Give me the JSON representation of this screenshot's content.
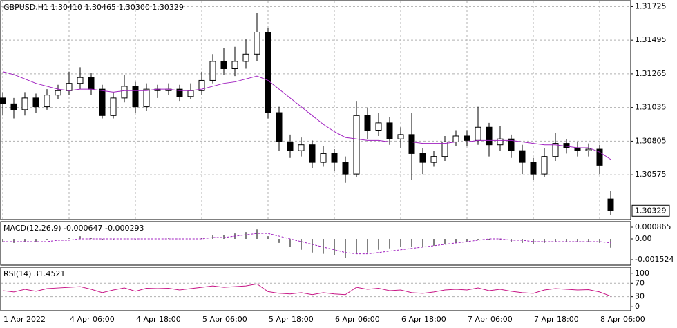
{
  "chart_data": [
    {
      "type": "candlestick",
      "title": "GBPUSD,H1  1.30410 1.30465 1.30300 1.30329",
      "categories": [
        "1 Apr 2022",
        null,
        null,
        null,
        null,
        null,
        "4 Apr 06:00",
        null,
        null,
        null,
        null,
        null,
        "4 Apr 18:00",
        null,
        null,
        null,
        null,
        null,
        "5 Apr 06:00",
        null,
        null,
        null,
        null,
        null,
        "5 Apr 18:00",
        null,
        null,
        null,
        null,
        null,
        "6 Apr 06:00",
        null,
        null,
        null,
        null,
        null,
        "6 Apr 18:00",
        null,
        null,
        null,
        null,
        null,
        "7 Apr 06:00",
        null,
        null,
        null,
        null,
        null,
        "7 Apr 18:00",
        null,
        null,
        null,
        null,
        null,
        "8 Apr 06:00",
        null
      ],
      "ohlc": [
        [
          1.311,
          1.3114,
          1.3098,
          1.3106
        ],
        [
          1.3106,
          1.311,
          1.3096,
          1.3102
        ],
        [
          1.3102,
          1.3114,
          1.3098,
          1.311
        ],
        [
          1.311,
          1.3113,
          1.31,
          1.3104
        ],
        [
          1.3104,
          1.3116,
          1.3102,
          1.3112
        ],
        [
          1.3112,
          1.3119,
          1.3109,
          1.3115
        ],
        [
          1.3115,
          1.3128,
          1.3112,
          1.312
        ],
        [
          1.312,
          1.3131,
          1.3116,
          1.3124
        ],
        [
          1.3124,
          1.3127,
          1.3112,
          1.3116
        ],
        [
          1.3116,
          1.3119,
          1.3096,
          1.3098
        ],
        [
          1.3098,
          1.3114,
          1.3096,
          1.311
        ],
        [
          1.311,
          1.3126,
          1.3107,
          1.3118
        ],
        [
          1.3118,
          1.3121,
          1.31,
          1.3104
        ],
        [
          1.3104,
          1.312,
          1.3101,
          1.3116
        ],
        [
          1.3116,
          1.3119,
          1.311,
          1.3115
        ],
        [
          1.3115,
          1.312,
          1.3112,
          1.3116
        ],
        [
          1.3116,
          1.3119,
          1.3108,
          1.3111
        ],
        [
          1.3111,
          1.312,
          1.3109,
          1.3115
        ],
        [
          1.3115,
          1.3128,
          1.3112,
          1.3122
        ],
        [
          1.3122,
          1.314,
          1.312,
          1.3135
        ],
        [
          1.3135,
          1.3144,
          1.3126,
          1.313
        ],
        [
          1.313,
          1.3145,
          1.3125,
          1.3135
        ],
        [
          1.3135,
          1.315,
          1.313,
          1.314
        ],
        [
          1.314,
          1.3168,
          1.3135,
          1.3155
        ],
        [
          1.3155,
          1.3158,
          1.3096,
          1.31
        ],
        [
          1.31,
          1.3104,
          1.3074,
          1.308
        ],
        [
          1.308,
          1.3085,
          1.3069,
          1.3074
        ],
        [
          1.3074,
          1.3083,
          1.307,
          1.3078
        ],
        [
          1.3078,
          1.3081,
          1.3062,
          1.3066
        ],
        [
          1.3066,
          1.3077,
          1.3063,
          1.3072
        ],
        [
          1.3072,
          1.3075,
          1.306,
          1.3066
        ],
        [
          1.3066,
          1.307,
          1.3052,
          1.3058
        ],
        [
          1.3058,
          1.3108,
          1.3056,
          1.3098
        ],
        [
          1.3098,
          1.3103,
          1.3082,
          1.3088
        ],
        [
          1.3088,
          1.31,
          1.3084,
          1.3093
        ],
        [
          1.3093,
          1.3097,
          1.3078,
          1.3082
        ],
        [
          1.3082,
          1.309,
          1.3076,
          1.3085
        ],
        [
          1.3085,
          1.31,
          1.3054,
          1.3072
        ],
        [
          1.3072,
          1.3076,
          1.3058,
          1.3066
        ],
        [
          1.3066,
          1.3074,
          1.3063,
          1.307
        ],
        [
          1.307,
          1.3084,
          1.3067,
          1.308
        ],
        [
          1.308,
          1.3088,
          1.3077,
          1.3084
        ],
        [
          1.3084,
          1.3088,
          1.3077,
          1.3081
        ],
        [
          1.3081,
          1.3104,
          1.3078,
          1.309
        ],
        [
          1.309,
          1.3093,
          1.307,
          1.3078
        ],
        [
          1.3078,
          1.3091,
          1.3074,
          1.3082
        ],
        [
          1.3082,
          1.3085,
          1.3069,
          1.3074
        ],
        [
          1.3074,
          1.3078,
          1.3058,
          1.3066
        ],
        [
          1.3066,
          1.3069,
          1.3054,
          1.3058
        ],
        [
          1.3058,
          1.3076,
          1.3056,
          1.307
        ],
        [
          1.307,
          1.3086,
          1.3067,
          1.3079
        ],
        [
          1.3079,
          1.3082,
          1.3072,
          1.3076
        ],
        [
          1.3076,
          1.308,
          1.307,
          1.3074
        ],
        [
          1.3074,
          1.3079,
          1.307,
          1.3075
        ],
        [
          1.3075,
          1.3078,
          1.3058,
          1.3064
        ],
        [
          1.3041,
          1.30465,
          1.303,
          1.30329
        ]
      ],
      "up_color": "#ffffff",
      "down_color": "#000000",
      "ma": {
        "color": "#a020c0",
        "values": [
          1.3128,
          1.3126,
          1.3123,
          1.312,
          1.3118,
          1.3116,
          1.3115,
          1.3116,
          1.3116,
          1.3115,
          1.3114,
          1.3115,
          1.3115,
          1.3115,
          1.3116,
          1.3116,
          1.3115,
          1.3115,
          1.3116,
          1.3118,
          1.312,
          1.3121,
          1.3123,
          1.3125,
          1.3122,
          1.3116,
          1.311,
          1.3104,
          1.3098,
          1.3092,
          1.3087,
          1.3083,
          1.3082,
          1.3081,
          1.3081,
          1.308,
          1.308,
          1.308,
          1.3079,
          1.3079,
          1.3079,
          1.308,
          1.308,
          1.3081,
          1.3081,
          1.3081,
          1.3081,
          1.308,
          1.3079,
          1.3078,
          1.3078,
          1.3077,
          1.3076,
          1.3076,
          1.3073,
          1.3068
        ]
      },
      "ylim": [
        1.30269,
        1.3176
      ],
      "yticks": [
        1.31725,
        1.31495,
        1.31265,
        1.31035,
        1.30805,
        1.30575
      ],
      "grid": true
    },
    {
      "type": "macd",
      "title": "MACD(12,26,9) -0.000647 -0.000293",
      "histogram": {
        "color": "#000000",
        "values": [
          -0.0002,
          -0.0003,
          -0.0002,
          -0.0002,
          -0.0001,
          0.0,
          0.0001,
          0.0002,
          0.0001,
          -0.0001,
          -0.0001,
          0.0,
          -0.0001,
          0.0,
          0.0,
          0.0001,
          0.0,
          0.0,
          0.0001,
          0.0003,
          0.0003,
          0.0004,
          0.0005,
          0.0007,
          0.0002,
          -0.0003,
          -0.0006,
          -0.0008,
          -0.001,
          -0.0011,
          -0.0012,
          -0.0014,
          -0.0011,
          -0.001,
          -0.0008,
          -0.0007,
          -0.0006,
          -0.0006,
          -0.0006,
          -0.0005,
          -0.0004,
          -0.0003,
          -0.0002,
          -0.0001,
          -0.0001,
          -0.0001,
          -0.0002,
          -0.0003,
          -0.0004,
          -0.0003,
          -0.0002,
          -0.0002,
          -0.0002,
          -0.0002,
          -0.0003,
          -0.000647
        ]
      },
      "signal": {
        "color": "#a020c0",
        "values": [
          -0.0002,
          -0.0002,
          -0.0002,
          -0.0002,
          -0.0002,
          -0.0001,
          -0.0001,
          0.0,
          0.0,
          0.0,
          0.0,
          0.0,
          0.0,
          0.0,
          0.0,
          0.0,
          0.0,
          0.0,
          0.0,
          0.0001,
          0.0001,
          0.0002,
          0.0003,
          0.0004,
          0.0004,
          0.0002,
          0.0,
          -0.0002,
          -0.0004,
          -0.0006,
          -0.0008,
          -0.001,
          -0.0011,
          -0.0011,
          -0.001,
          -0.0009,
          -0.0008,
          -0.0007,
          -0.0006,
          -0.0005,
          -0.0004,
          -0.0003,
          -0.0002,
          -0.0001,
          0.0,
          0.0,
          -0.0001,
          -0.0001,
          -0.0002,
          -0.0002,
          -0.0002,
          -0.0002,
          -0.0002,
          -0.0002,
          -0.0002,
          -0.000293
        ]
      },
      "ylim": [
        -0.00193,
        0.00122
      ],
      "yticks": [
        0.000865,
        {
          "value": 0,
          "label": "0.00"
        },
        -0.001524
      ]
    },
    {
      "type": "line",
      "title": "RSI(14) 31.4521",
      "color": "#c71585",
      "values": [
        48,
        44,
        52,
        46,
        54,
        56,
        58,
        60,
        52,
        42,
        50,
        56,
        46,
        55,
        54,
        55,
        50,
        54,
        58,
        62,
        58,
        60,
        62,
        68,
        45,
        40,
        38,
        42,
        36,
        42,
        38,
        36,
        58,
        52,
        55,
        48,
        50,
        42,
        40,
        44,
        50,
        52,
        50,
        56,
        48,
        52,
        46,
        42,
        40,
        50,
        54,
        52,
        50,
        51,
        44,
        31.4521
      ],
      "ylim": [
        -12,
        116
      ],
      "yticks": [
        100,
        70,
        30,
        0
      ]
    }
  ]
}
